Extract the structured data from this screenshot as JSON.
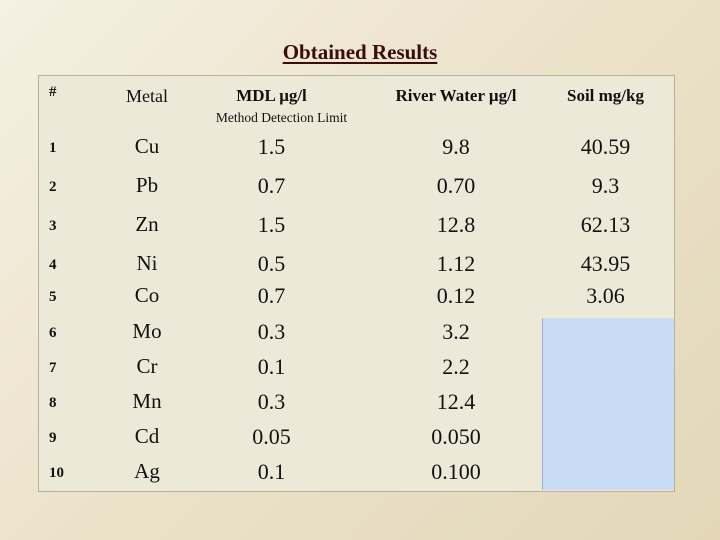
{
  "title": "Obtained Results",
  "headers": {
    "index": "#",
    "metal": "Metal",
    "mdl": "MDL  μg/l",
    "mdl_sub": "Method Detection Limit",
    "river": "River Water  μg/l",
    "soil": "Soil   mg/kg"
  },
  "rows": [
    {
      "index": "1",
      "metal": "Cu",
      "mdl": "1.5",
      "river": "9.8",
      "soil": "40.59"
    },
    {
      "index": "2",
      "metal": "Pb",
      "mdl": "0.7",
      "river": "0.70",
      "soil": "9.3"
    },
    {
      "index": "3",
      "metal": "Zn",
      "mdl": "1.5",
      "river": "12.8",
      "soil": "62.13"
    },
    {
      "index": "4",
      "metal": "Ni",
      "mdl": "0.5",
      "river": "1.12",
      "soil": "43.95"
    },
    {
      "index": "5",
      "metal": "Co",
      "mdl": "0.7",
      "river": "0.12",
      "soil": "3.06"
    },
    {
      "index": "6",
      "metal": "Mo",
      "mdl": "0.3",
      "river": "3.2",
      "soil": ""
    },
    {
      "index": "7",
      "metal": "Cr",
      "mdl": "0.1",
      "river": "2.2",
      "soil": ""
    },
    {
      "index": "8",
      "metal": "Mn",
      "mdl": "0.3",
      "river": "12.4",
      "soil": ""
    },
    {
      "index": "9",
      "metal": "Cd",
      "mdl": "0.05",
      "river": "0.050",
      "soil": ""
    },
    {
      "index": "10",
      "metal": "Ag",
      "mdl": "0.1",
      "river": "0.100",
      "soil": ""
    }
  ],
  "colors": {
    "background": "#ece3cc",
    "table": "#ede9d8",
    "soil_empty_block": "#c9dcf6",
    "title": "#3a0c0c"
  }
}
